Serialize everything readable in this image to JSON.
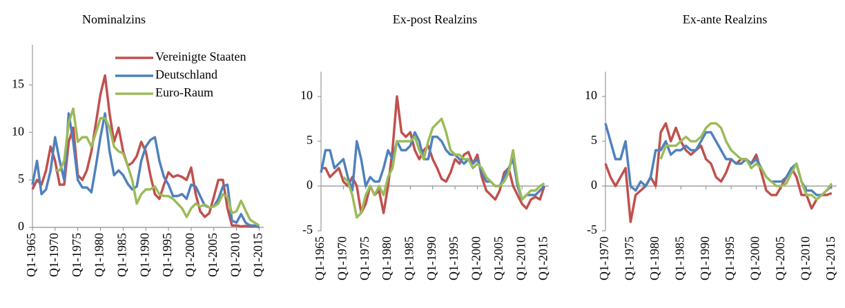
{
  "chart_data": [
    {
      "type": "line",
      "title": "Nominalzins",
      "legend": "top-right",
      "x": [
        1965,
        1966,
        1967,
        1968,
        1969,
        1970,
        1971,
        1972,
        1973,
        1974,
        1975,
        1976,
        1977,
        1978,
        1979,
        1980,
        1981,
        1982,
        1983,
        1984,
        1985,
        1986,
        1987,
        1988,
        1989,
        1990,
        1991,
        1992,
        1993,
        1994,
        1995,
        1996,
        1997,
        1998,
        1999,
        2000,
        2001,
        2002,
        2003,
        2004,
        2005,
        2006,
        2007,
        2008,
        2009,
        2010,
        2011,
        2012,
        2013,
        2014,
        2015
      ],
      "xlim": [
        1965,
        2016
      ],
      "xticks": [
        {
          "value": 1965,
          "label": "Q1-1965"
        },
        {
          "value": 1970,
          "label": "Q1-1970"
        },
        {
          "value": 1975,
          "label": "Q1-1975"
        },
        {
          "value": 1980,
          "label": "Q1-1980"
        },
        {
          "value": 1985,
          "label": "Q1-1985"
        },
        {
          "value": 1990,
          "label": "Q1-1990"
        },
        {
          "value": 1995,
          "label": "Q1-1995"
        },
        {
          "value": 2000,
          "label": "Q1-2000"
        },
        {
          "value": 2005,
          "label": "Q1-2005"
        },
        {
          "value": 2010,
          "label": "Q1-2010"
        },
        {
          "value": 2015,
          "label": "Q1-2015"
        }
      ],
      "ylim": [
        0,
        18.5
      ],
      "yticks": [
        0,
        5,
        10,
        15
      ],
      "series": [
        {
          "name": "Vereinigte Staaten",
          "color": "#c0504d",
          "values": [
            4,
            5,
            4.5,
            6,
            8.5,
            7,
            4.5,
            4.5,
            9,
            10.5,
            5.5,
            5,
            6,
            8,
            11,
            14,
            16,
            12,
            9,
            10.5,
            8,
            6.5,
            6.8,
            7.5,
            9,
            8,
            5.5,
            3.5,
            3,
            4.5,
            5.8,
            5.3,
            5.5,
            5.3,
            5,
            6.3,
            3.5,
            1.7,
            1.1,
            1.5,
            3.2,
            5,
            5,
            2,
            0.2,
            0.2,
            0.1,
            0.15,
            0.1,
            0.1,
            0.2
          ]
        },
        {
          "name": "Deutschland",
          "color": "#4f81bd",
          "values": [
            4.5,
            7,
            3.5,
            4,
            6,
            9.5,
            7,
            5,
            12,
            9,
            5,
            4.2,
            4.2,
            3.7,
            6.5,
            9.5,
            12,
            8,
            5.5,
            6,
            5.5,
            4.6,
            4,
            4.3,
            7,
            8.5,
            9.2,
            9.5,
            7,
            5.3,
            4.5,
            3.3,
            3.3,
            3.5,
            3,
            4.5,
            4.3,
            3.3,
            2.3,
            2.1,
            2.2,
            3,
            4.3,
            4.5,
            0.7,
            0.5,
            1.4,
            0.5,
            0.2,
            0.2,
            0
          ]
        },
        {
          "name": "Euro-Raum",
          "color": "#9bbb59",
          "values": [
            null,
            null,
            null,
            null,
            null,
            6,
            6,
            7,
            11,
            12.5,
            9,
            9.5,
            9.5,
            8.5,
            10,
            11.5,
            11.5,
            10.5,
            8.5,
            8,
            7.8,
            6.5,
            5,
            2.5,
            3.5,
            4,
            4,
            4.3,
            3.5,
            3.3,
            3.3,
            3,
            2.5,
            2,
            1.1,
            2,
            2.5,
            2.2,
            2.4,
            2.1,
            2.2,
            2.5,
            3.5,
            3.2,
            1.5,
            1.7,
            2.8,
            1.8,
            0.8,
            0.5,
            0.2
          ]
        }
      ]
    },
    {
      "type": "line",
      "title": "Ex-post Realzins",
      "x": [
        1965,
        1966,
        1967,
        1968,
        1969,
        1970,
        1971,
        1972,
        1973,
        1974,
        1975,
        1976,
        1977,
        1978,
        1979,
        1980,
        1981,
        1982,
        1983,
        1984,
        1985,
        1986,
        1987,
        1988,
        1989,
        1990,
        1991,
        1992,
        1993,
        1994,
        1995,
        1996,
        1997,
        1998,
        1999,
        2000,
        2001,
        2002,
        2003,
        2004,
        2005,
        2006,
        2007,
        2008,
        2009,
        2010,
        2011,
        2012,
        2013,
        2014,
        2015
      ],
      "xlim": [
        1965,
        2016
      ],
      "xticks": [
        {
          "value": 1965,
          "label": "Q1-1965"
        },
        {
          "value": 1970,
          "label": "Q1-1970"
        },
        {
          "value": 1975,
          "label": "Q1-1975"
        },
        {
          "value": 1980,
          "label": "Q1-1980"
        },
        {
          "value": 1985,
          "label": "Q1-1985"
        },
        {
          "value": 1990,
          "label": "Q1-1990"
        },
        {
          "value": 1995,
          "label": "Q1-1995"
        },
        {
          "value": 2000,
          "label": "Q1-2000"
        },
        {
          "value": 2005,
          "label": "Q1-2005"
        },
        {
          "value": 2010,
          "label": "Q1-2010"
        },
        {
          "value": 2015,
          "label": "Q1-2015"
        }
      ],
      "ylim": [
        -5,
        12
      ],
      "yticks": [
        -5,
        0,
        5,
        10
      ],
      "series": [
        {
          "color": "#c0504d",
          "values": [
            2,
            2,
            1,
            1.5,
            2,
            0.5,
            0,
            1,
            0,
            -3,
            -2,
            0,
            -1,
            -0.5,
            -3,
            0,
            4,
            10,
            6,
            5.5,
            6,
            4,
            3,
            4,
            4.5,
            3,
            2,
            0.8,
            0.5,
            1.5,
            3,
            2.5,
            3.5,
            3.8,
            2.5,
            3.5,
            1,
            -0.5,
            -1,
            -1.5,
            -0.5,
            1.5,
            2,
            0,
            -1,
            -2,
            -2.5,
            -1.5,
            -1.2,
            -1.5,
            0
          ]
        },
        {
          "color": "#4f81bd",
          "values": [
            1.5,
            4,
            4,
            2,
            2.5,
            3,
            1,
            -0.5,
            5,
            3,
            0,
            1,
            0.5,
            0.5,
            2,
            4,
            3,
            5,
            4,
            4,
            4.5,
            6,
            5,
            3,
            3,
            5.5,
            5.5,
            5,
            4,
            3.5,
            3.5,
            3,
            2.5,
            3,
            2.5,
            3,
            1.5,
            0.5,
            0.5,
            0,
            0,
            1,
            2,
            3,
            0,
            -1.5,
            -1,
            -1,
            -1,
            -0.5,
            0
          ]
        },
        {
          "color": "#9bbb59",
          "values": [
            null,
            null,
            null,
            null,
            null,
            1,
            0.5,
            -1,
            -3.5,
            -3,
            -1,
            0,
            -1,
            0,
            -1,
            1,
            2,
            5,
            5,
            5,
            5,
            5.5,
            4,
            3,
            5,
            6.5,
            7,
            7.5,
            6,
            4,
            3.5,
            3.5,
            3,
            3,
            2,
            2.5,
            2,
            1,
            0.5,
            0,
            0,
            0.5,
            1.5,
            4,
            0.5,
            -1.5,
            -1,
            -0.5,
            -0.5,
            0,
            0.3
          ]
        }
      ]
    },
    {
      "type": "line",
      "title": "Ex-ante Realzins",
      "x": [
        1970,
        1971,
        1972,
        1973,
        1974,
        1975,
        1976,
        1977,
        1978,
        1979,
        1980,
        1981,
        1982,
        1983,
        1984,
        1985,
        1986,
        1987,
        1988,
        1989,
        1990,
        1991,
        1992,
        1993,
        1994,
        1995,
        1996,
        1997,
        1998,
        1999,
        2000,
        2001,
        2002,
        2003,
        2004,
        2005,
        2006,
        2007,
        2008,
        2009,
        2010,
        2011,
        2012,
        2013,
        2014,
        2015
      ],
      "xlim": [
        1970,
        2016
      ],
      "xticks": [
        {
          "value": 1970,
          "label": "Q1-1970"
        },
        {
          "value": 1975,
          "label": "Q1-1975"
        },
        {
          "value": 1980,
          "label": "Q1-1980"
        },
        {
          "value": 1985,
          "label": "Q1-1985"
        },
        {
          "value": 1990,
          "label": "Q1-1990"
        },
        {
          "value": 1995,
          "label": "Q1-1995"
        },
        {
          "value": 2000,
          "label": "Q1-2000"
        },
        {
          "value": 2005,
          "label": "Q1-2005"
        },
        {
          "value": 2010,
          "label": "Q1-2010"
        },
        {
          "value": 2015,
          "label": "Q1-2015"
        }
      ],
      "ylim": [
        -5,
        12
      ],
      "yticks": [
        -5,
        0,
        5,
        10
      ],
      "series": [
        {
          "color": "#c0504d",
          "values": [
            2.5,
            1,
            0,
            1,
            2,
            -4,
            -1,
            -0.5,
            0,
            1,
            0,
            6,
            7,
            5,
            6.5,
            5,
            4,
            3.5,
            4,
            4.5,
            3,
            2.5,
            1,
            0.5,
            1.5,
            3,
            2.5,
            3,
            3,
            2.5,
            3.5,
            1.5,
            -0.5,
            -1,
            -1,
            0,
            1,
            2,
            1,
            -1,
            -1,
            -2.5,
            -1.5,
            -1,
            -1,
            -0.8
          ]
        },
        {
          "color": "#4f81bd",
          "values": [
            7,
            5,
            3,
            3,
            5,
            0,
            -0.5,
            0.5,
            0,
            1,
            4,
            4,
            5,
            3.5,
            4,
            4,
            4.5,
            4,
            4,
            5,
            6,
            6,
            5,
            4,
            3,
            3,
            2.5,
            2.5,
            3,
            2.5,
            3,
            2,
            1,
            0.5,
            0.5,
            0.5,
            1,
            2,
            2.5,
            0.5,
            -0.5,
            -0.5,
            -1,
            -1,
            -0.5,
            0
          ]
        },
        {
          "color": "#9bbb59",
          "values": [
            null,
            null,
            null,
            null,
            null,
            null,
            null,
            null,
            null,
            null,
            null,
            3,
            4.5,
            4.5,
            4.5,
            5,
            5.5,
            5,
            5,
            5.5,
            6.5,
            7,
            7,
            6.5,
            5,
            4,
            3.5,
            3,
            3,
            2,
            2.5,
            2,
            1,
            0.5,
            0,
            0,
            0.3,
            1.5,
            2.5,
            0.5,
            -1,
            -1,
            -1.5,
            -1,
            -0.5,
            0.3
          ]
        }
      ]
    }
  ]
}
